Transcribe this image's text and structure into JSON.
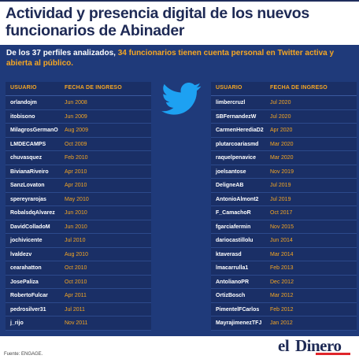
{
  "title": "Actividad y presencia digital de los nuevos funcionarios de Abinader",
  "subtitle": {
    "part1": "De los 37 perfiles analizados, ",
    "highlight": "34 funcionarios tienen cuenta personal en Twitter activa y abierta al público."
  },
  "icons": {
    "bird": "twitter-bird-icon"
  },
  "colors": {
    "background": "#1f3a7a",
    "accent": "#f5a623",
    "title": "#1e2a55",
    "brand_red": "#e0262b"
  },
  "chart_data": {
    "type": "table",
    "columns": [
      "USUARIO",
      "FECHA DE INGRESO"
    ],
    "left": [
      {
        "user": "orlandojm",
        "date": "Jun 2008"
      },
      {
        "user": "itobisono",
        "date": "Jun 2009"
      },
      {
        "user": "MilagrosGermanO",
        "date": "Aug 2009"
      },
      {
        "user": "LMDECAMPS",
        "date": "Oct 2009"
      },
      {
        "user": "chuvasquez",
        "date": "Feb 2010"
      },
      {
        "user": "BivianaRiveiro",
        "date": "Apr 2010"
      },
      {
        "user": "SanzLovaton",
        "date": "Apr 2010"
      },
      {
        "user": "spereyrarojas",
        "date": "May 2010"
      },
      {
        "user": "RobalsdqAlvarez",
        "date": "Jun 2010"
      },
      {
        "user": "DavidColladoM",
        "date": "Jun 2010"
      },
      {
        "user": "jochivicente",
        "date": "Jul 2010"
      },
      {
        "user": "lvaldezv",
        "date": "Aug 2010"
      },
      {
        "user": "cearahatton",
        "date": "Oct 2010"
      },
      {
        "user": "JosePaliza",
        "date": "Oct 2010"
      },
      {
        "user": "RobertoFulcar",
        "date": "Apr 2011"
      },
      {
        "user": "pedrosilver31",
        "date": "Jul 2011"
      },
      {
        "user": "j_rijo",
        "date": "Nov 2011"
      }
    ],
    "right": [
      {
        "user": "limbercruzl",
        "date": "Jul 2020"
      },
      {
        "user": "SBFernandezW",
        "date": "Jul 2020"
      },
      {
        "user": "CarmenHerediaD2",
        "date": "Apr 2020"
      },
      {
        "user": "plutarcoariasmd",
        "date": "Mar 2020"
      },
      {
        "user": "raquelpenavice",
        "date": "Mar 2020"
      },
      {
        "user": "joelsantose",
        "date": "Nov 2019"
      },
      {
        "user": "DeligneAB",
        "date": "Jul 2019"
      },
      {
        "user": "AntonioAlmont2",
        "date": "Jul 2019"
      },
      {
        "user": "F_CamachoR",
        "date": "Oct 2017"
      },
      {
        "user": "fgarciafermin",
        "date": "Nov 2015"
      },
      {
        "user": "dariocastillolu",
        "date": "Jun 2014"
      },
      {
        "user": "ktaverasd",
        "date": "Mar 2014"
      },
      {
        "user": "lmacarrulla1",
        "date": "Feb 2013"
      },
      {
        "user": "AntolianoPR",
        "date": "Dec 2012"
      },
      {
        "user": "OrtizBosch",
        "date": "Mar 2012"
      },
      {
        "user": "PimentelFCarlos",
        "date": "Feb 2012"
      },
      {
        "user": "MayrajimenezTFJ",
        "date": "Jan 2012"
      }
    ]
  },
  "footer": {
    "source": "Fuente: ENGAGE.",
    "logo_el": "el",
    "logo_dinero": "Dinero"
  }
}
